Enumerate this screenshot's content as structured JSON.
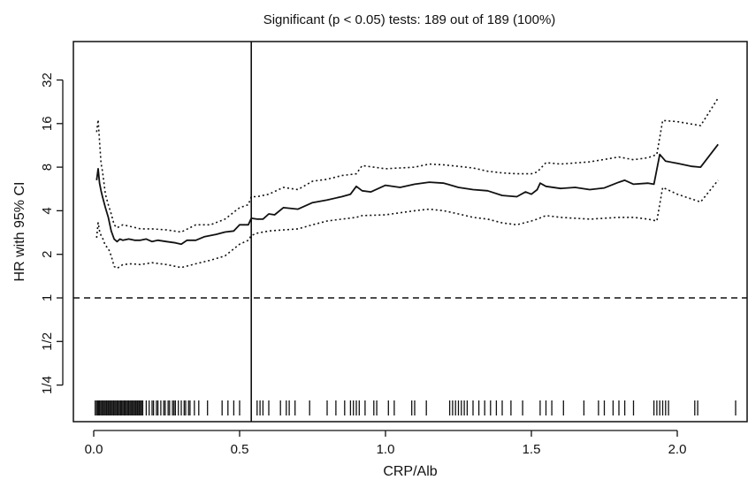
{
  "chart_data": {
    "type": "line",
    "title": "Significant (p < 0.05) tests: 189 out of 189 (100%)",
    "xlabel": "CRP/Alb",
    "ylabel": "HR with 95% CI",
    "y_scale": "log2",
    "xlim": [
      -0.06,
      2.22
    ],
    "ylim": [
      0.18,
      45
    ],
    "grid": false,
    "legend": "none",
    "x_ticks": [
      0.0,
      0.5,
      1.0,
      1.5,
      2.0
    ],
    "x_tick_labels": [
      "0.0",
      "0.5",
      "1.0",
      "1.5",
      "2.0"
    ],
    "y_ticks": [
      0.25,
      0.5,
      1,
      2,
      4,
      8,
      16,
      32
    ],
    "y_tick_labels": [
      "1/4",
      "1/2",
      "1",
      "2",
      "4",
      "8",
      "16",
      "32"
    ],
    "reference_line": {
      "y": 1,
      "style": "dashed"
    },
    "cutoff_line": {
      "x": 0.54,
      "style": "solid"
    },
    "series": [
      {
        "role": "hr",
        "style": "solid",
        "x": [
          0.01,
          0.015,
          0.02,
          0.025,
          0.03,
          0.04,
          0.05,
          0.06,
          0.07,
          0.08,
          0.09,
          0.1,
          0.12,
          0.14,
          0.16,
          0.18,
          0.2,
          0.22,
          0.25,
          0.28,
          0.3,
          0.32,
          0.35,
          0.38,
          0.42,
          0.45,
          0.48,
          0.5,
          0.53,
          0.54,
          0.56,
          0.58,
          0.6,
          0.62,
          0.65,
          0.7,
          0.75,
          0.8,
          0.85,
          0.88,
          0.9,
          0.92,
          0.95,
          1.0,
          1.05,
          1.1,
          1.15,
          1.2,
          1.25,
          1.3,
          1.35,
          1.4,
          1.45,
          1.48,
          1.5,
          1.52,
          1.53,
          1.55,
          1.6,
          1.65,
          1.7,
          1.75,
          1.8,
          1.82,
          1.85,
          1.9,
          1.92,
          1.94,
          1.96,
          2.0,
          2.05,
          2.08,
          2.14
        ],
        "y": [
          6.5,
          7.8,
          6.2,
          5.5,
          5.0,
          4.2,
          3.6,
          2.9,
          2.55,
          2.45,
          2.55,
          2.5,
          2.55,
          2.5,
          2.5,
          2.55,
          2.45,
          2.5,
          2.45,
          2.4,
          2.35,
          2.5,
          2.5,
          2.65,
          2.75,
          2.85,
          2.9,
          3.2,
          3.2,
          3.55,
          3.5,
          3.5,
          3.8,
          3.75,
          4.2,
          4.1,
          4.55,
          4.75,
          5.0,
          5.2,
          5.9,
          5.5,
          5.4,
          6.0,
          5.8,
          6.1,
          6.3,
          6.2,
          5.8,
          5.6,
          5.5,
          5.1,
          5.0,
          5.4,
          5.2,
          5.6,
          6.2,
          5.9,
          5.7,
          5.8,
          5.6,
          5.75,
          6.3,
          6.5,
          6.1,
          6.2,
          6.1,
          9.8,
          8.8,
          8.5,
          8.1,
          8.0,
          11.5
        ]
      },
      {
        "role": "ci_upper",
        "style": "dotted",
        "x": [
          0.01,
          0.015,
          0.02,
          0.025,
          0.03,
          0.04,
          0.05,
          0.06,
          0.07,
          0.08,
          0.1,
          0.13,
          0.16,
          0.2,
          0.25,
          0.3,
          0.35,
          0.4,
          0.45,
          0.5,
          0.53,
          0.54,
          0.56,
          0.6,
          0.65,
          0.7,
          0.75,
          0.8,
          0.85,
          0.9,
          0.92,
          1.0,
          1.1,
          1.15,
          1.2,
          1.25,
          1.3,
          1.35,
          1.4,
          1.45,
          1.5,
          1.52,
          1.55,
          1.6,
          1.7,
          1.8,
          1.85,
          1.9,
          1.93,
          1.95,
          2.0,
          2.08,
          2.14
        ],
        "y": [
          14.0,
          17.0,
          12.0,
          8.5,
          7.5,
          5.2,
          4.4,
          3.8,
          3.2,
          3.05,
          3.2,
          3.1,
          3.0,
          3.0,
          2.95,
          2.85,
          3.2,
          3.2,
          3.5,
          4.2,
          4.4,
          5.0,
          5.0,
          5.2,
          5.8,
          5.6,
          6.4,
          6.6,
          7.0,
          7.2,
          8.2,
          7.8,
          8.0,
          8.4,
          8.3,
          8.1,
          7.9,
          7.5,
          7.3,
          7.2,
          7.2,
          7.4,
          8.6,
          8.4,
          8.7,
          9.4,
          9.0,
          9.3,
          9.8,
          16.8,
          16.5,
          15.5,
          24.0
        ]
      },
      {
        "role": "ci_lower",
        "style": "dotted",
        "x": [
          0.01,
          0.015,
          0.02,
          0.025,
          0.03,
          0.04,
          0.05,
          0.06,
          0.07,
          0.08,
          0.1,
          0.13,
          0.16,
          0.2,
          0.25,
          0.3,
          0.35,
          0.4,
          0.45,
          0.5,
          0.53,
          0.54,
          0.56,
          0.6,
          0.65,
          0.7,
          0.75,
          0.8,
          0.85,
          0.9,
          0.92,
          1.0,
          1.1,
          1.15,
          1.2,
          1.25,
          1.3,
          1.35,
          1.4,
          1.45,
          1.5,
          1.52,
          1.55,
          1.6,
          1.7,
          1.8,
          1.85,
          1.9,
          1.93,
          1.95,
          2.0,
          2.08,
          2.14
        ],
        "y": [
          2.6,
          3.3,
          2.9,
          2.7,
          2.6,
          2.3,
          2.2,
          1.95,
          1.65,
          1.6,
          1.7,
          1.72,
          1.7,
          1.75,
          1.7,
          1.62,
          1.72,
          1.82,
          1.95,
          2.35,
          2.5,
          2.7,
          2.8,
          2.9,
          2.95,
          3.0,
          3.2,
          3.4,
          3.5,
          3.6,
          3.7,
          3.75,
          4.0,
          4.1,
          4.0,
          3.8,
          3.6,
          3.5,
          3.3,
          3.2,
          3.4,
          3.5,
          3.7,
          3.6,
          3.5,
          3.6,
          3.6,
          3.5,
          3.4,
          5.8,
          5.2,
          4.6,
          6.5
        ]
      }
    ],
    "rug": [
      0.005,
      0.01,
      0.013,
      0.017,
      0.02,
      0.024,
      0.028,
      0.032,
      0.036,
      0.04,
      0.044,
      0.048,
      0.052,
      0.056,
      0.06,
      0.064,
      0.068,
      0.072,
      0.076,
      0.08,
      0.084,
      0.088,
      0.092,
      0.096,
      0.1,
      0.104,
      0.108,
      0.112,
      0.116,
      0.12,
      0.124,
      0.128,
      0.132,
      0.136,
      0.14,
      0.144,
      0.148,
      0.152,
      0.156,
      0.16,
      0.164,
      0.168,
      0.18,
      0.19,
      0.2,
      0.205,
      0.215,
      0.22,
      0.23,
      0.24,
      0.245,
      0.255,
      0.26,
      0.27,
      0.275,
      0.28,
      0.29,
      0.3,
      0.31,
      0.315,
      0.325,
      0.33,
      0.345,
      0.36,
      0.39,
      0.44,
      0.46,
      0.48,
      0.5,
      0.54,
      0.56,
      0.57,
      0.58,
      0.6,
      0.64,
      0.66,
      0.67,
      0.69,
      0.74,
      0.8,
      0.83,
      0.86,
      0.88,
      0.89,
      0.9,
      0.91,
      0.93,
      0.96,
      0.97,
      1.01,
      1.03,
      1.09,
      1.1,
      1.14,
      1.22,
      1.23,
      1.24,
      1.25,
      1.26,
      1.27,
      1.28,
      1.3,
      1.32,
      1.34,
      1.36,
      1.38,
      1.4,
      1.43,
      1.47,
      1.53,
      1.55,
      1.57,
      1.61,
      1.68,
      1.73,
      1.75,
      1.78,
      1.8,
      1.82,
      1.85,
      1.92,
      1.93,
      1.94,
      1.95,
      1.96,
      1.97,
      2.06,
      2.07,
      2.2
    ]
  }
}
